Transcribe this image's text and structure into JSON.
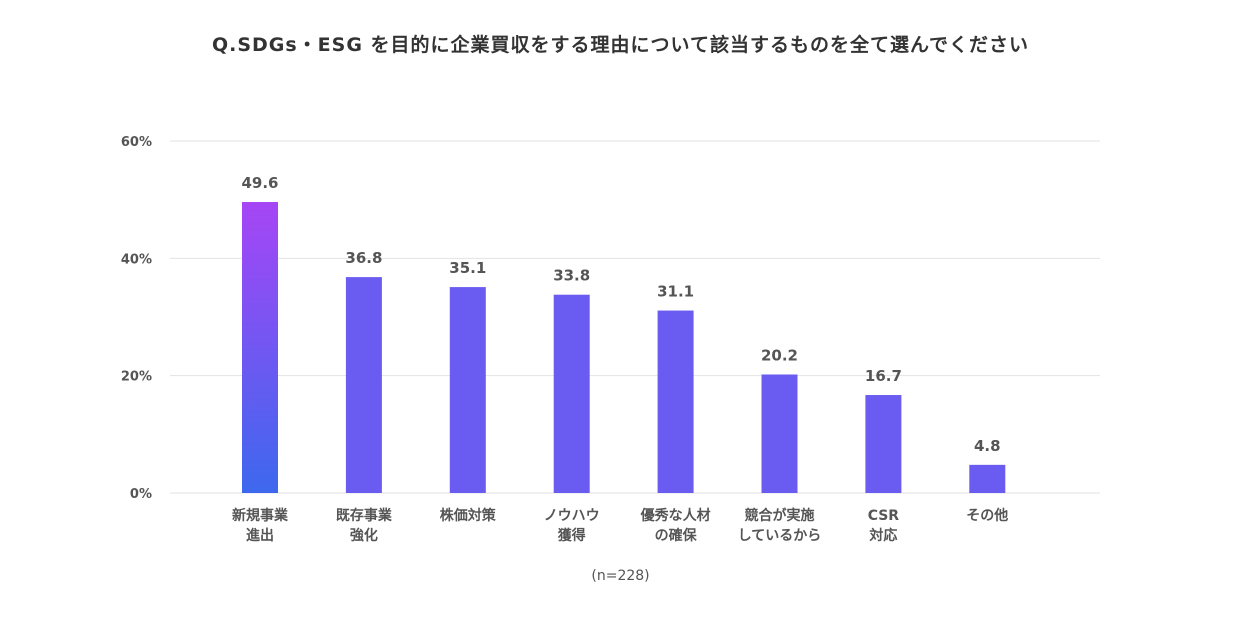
{
  "chart_data": {
    "type": "bar",
    "title": "Q.SDGs・ESG を目的に企業買収をする理由について該当するものを全て選んでください",
    "categories": [
      [
        "新規事業",
        "進出"
      ],
      [
        "既存事業",
        "強化"
      ],
      [
        "株価対策"
      ],
      [
        "ノウハウ",
        "獲得"
      ],
      [
        "優秀な人材",
        "の確保"
      ],
      [
        "競合が実施",
        "しているから"
      ],
      [
        "CSR",
        "対応"
      ],
      [
        "その他"
      ]
    ],
    "values": [
      49.6,
      36.8,
      35.1,
      33.8,
      31.1,
      20.2,
      16.7,
      4.8
    ],
    "value_labels": [
      "49.6",
      "36.8",
      "35.1",
      "33.8",
      "31.1",
      "20.2",
      "16.7",
      "4.8"
    ],
    "yticks": [
      "0%",
      "20%",
      "40%",
      "60%"
    ],
    "ylim": [
      0,
      60
    ],
    "grid": true,
    "note": "(n=228)",
    "colors": {
      "bar": "#6a5cf0",
      "highlight_top": "#a646f5",
      "highlight_bottom": "#3d68ee",
      "grid": "#e2e2e2",
      "text": "#555555"
    }
  }
}
